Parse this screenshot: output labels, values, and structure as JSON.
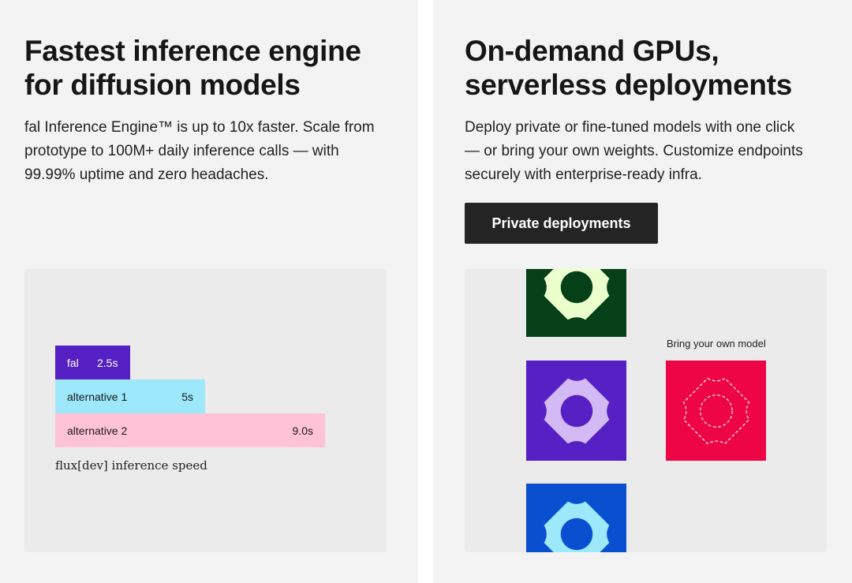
{
  "left_card": {
    "title": "Fastest inference engine\nfor diffusion models",
    "description": "fal Inference Engine™ is up to 10x faster. Scale from\nprototype to 100M+ daily inference calls — with\n99.99% uptime and zero headaches.",
    "chart_caption": "flux[dev] inference speed"
  },
  "chart_data": {
    "type": "bar",
    "orientation": "horizontal",
    "title": "flux[dev] inference speed",
    "categories": [
      "fal",
      "alternative 1",
      "alternative 2"
    ],
    "values": [
      2.5,
      5,
      9.0
    ],
    "value_labels": [
      "2.5s",
      "5s",
      "9.0s"
    ],
    "unit": "s",
    "colors": [
      "#5521c4",
      "#9de8fb",
      "#ffc2d6"
    ],
    "label_colors": [
      "#ffffff",
      "#1a1a1a",
      "#1a1a1a"
    ],
    "grid": false
  },
  "right_card": {
    "title": "On-demand GPUs,\nserverless deployments",
    "description": "Deploy private or fine-tuned models with one click\n— or bring your own weights. Customize endpoints\nsecurely with enterprise-ready infra.",
    "button_label": "Private deployments",
    "byo_label": "Bring your own model"
  },
  "tiles": [
    {
      "name": "green",
      "bg": "#064018",
      "fg": "#eaffcc"
    },
    {
      "name": "purple",
      "bg": "#5521c4",
      "fg": "#d4baf5"
    },
    {
      "name": "blue",
      "bg": "#0b4fd1",
      "fg": "#9de8fb"
    },
    {
      "name": "byo",
      "bg": "#ee0545",
      "fg": "#ffffff"
    }
  ]
}
